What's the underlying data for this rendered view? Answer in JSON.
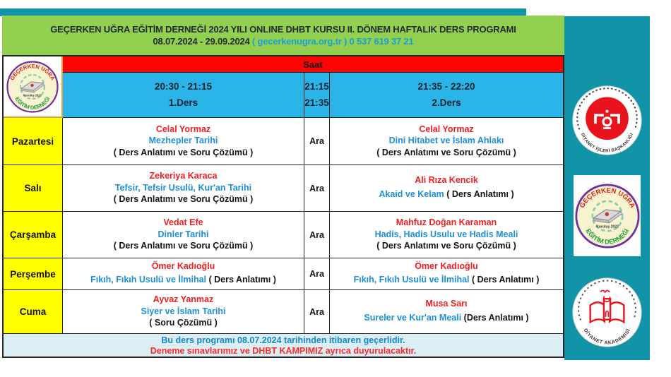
{
  "colors": {
    "teal_panel": "#1294a8",
    "header_green": "#92d04f",
    "saat_red": "#fe0505",
    "time_blue": "#2ab4e8",
    "day_yellow": "#ffff00",
    "teacher_red": "#f01e23",
    "course_blue": "#1d8fd6",
    "footer_bg": "#daeef3",
    "contact_cyan": "#18a0d8"
  },
  "header": {
    "line1": "GEÇERKEN UĞRA EĞİTİM DERNEĞİ 2024 YILI ONLINE DHBT KURSU II. DÖNEM HAFTALIK DERS PROGRAMI",
    "dates": "08.07.2024 - 29.09.2024",
    "contact": "( gecerkenugra.org.tr ) 0 537 619 37 21"
  },
  "table": {
    "saat": "Saat",
    "col1": {
      "time": "20:30 - 21:15",
      "label": "1.Ders"
    },
    "break_col": {
      "t1": "21:15",
      "t2": "21:35"
    },
    "col2": {
      "time": "21:35 - 22:20",
      "label": "2.Ders"
    },
    "break_label": "Ara",
    "rows": [
      {
        "day": "Pazartesi",
        "lesson1": {
          "teacher": "Celal Yormaz",
          "course": "Mezhepler Tarihi",
          "note": "( Ders Anlatımı ve Soru Çözümü )",
          "inline": false
        },
        "lesson2": {
          "teacher": "Celal Yormaz",
          "course": "Dini Hitabet ve İslam Ahlakı",
          "note": "( Ders Anlatımı ve Soru Çözümü )",
          "inline": false
        }
      },
      {
        "day": "Salı",
        "lesson1": {
          "teacher": "Zekeriya Karaca",
          "course": "Tefsir, Tefsir Usulü, Kur'an Tarihi",
          "note": "( Ders Anlatımı ve Soru Çözümü )",
          "inline": false
        },
        "lesson2": {
          "teacher": "Ali Rıza Kencik",
          "course": "Akaid ve Kelam",
          "note": "( Ders Anlatımı )",
          "inline": true
        }
      },
      {
        "day": "Çarşamba",
        "lesson1": {
          "teacher": "Vedat Efe",
          "course": "Dinler Tarihi",
          "note": "( Ders Anlatımı ve Soru Çözümü )",
          "inline": false
        },
        "lesson2": {
          "teacher": "Mahfuz Doğan Karaman",
          "course": "Hadis, Hadis Usulu ve Hadis Meali",
          "note": "( Ders Anlatımı ve Soru Çözümü )",
          "inline": false
        }
      },
      {
        "day": "Perşembe",
        "lesson1": {
          "teacher": "Ömer Kadıoğlu",
          "course": "Fıkıh, Fıkıh Usulü ve İlmihal",
          "note": "( Ders Anlatımı )",
          "inline": true
        },
        "lesson2": {
          "teacher": "Ömer Kadıoğlu",
          "course": "Fıkıh, Fıkıh Usulü ve İlmihal",
          "note": "( Ders Anlatımı )",
          "inline": true
        }
      },
      {
        "day": "Cuma",
        "lesson1": {
          "teacher": "Ayvaz Yanmaz",
          "course": "Siyer ve İslam Tarihi",
          "note": "( Soru Çözümü )",
          "inline": false
        },
        "lesson2": {
          "teacher": "Musa Sarı",
          "course": "Sureler ve Kur'an Meali",
          "note": "(Ders Anlatımı )",
          "inline": true
        }
      }
    ]
  },
  "footer": {
    "line1": "Bu ders programı 08.07.2024 tarihinden itibaren geçerlidir.",
    "line2": "Deneme sınavlarımız ve DHBT KAMPIMIZ ayrıca duyurulacaktır."
  },
  "logos": {
    "association": {
      "top": "GEÇERKEN UĞRA",
      "bottom": "EĞİTİM DERNEĞİ",
      "founded": "Kuruluş 2023"
    },
    "diyanet": {
      "text": "DİYANET İŞLERİ BAŞKANLIĞI"
    },
    "akademi": {
      "text": "DİYANET AKADEMİSİ"
    }
  }
}
